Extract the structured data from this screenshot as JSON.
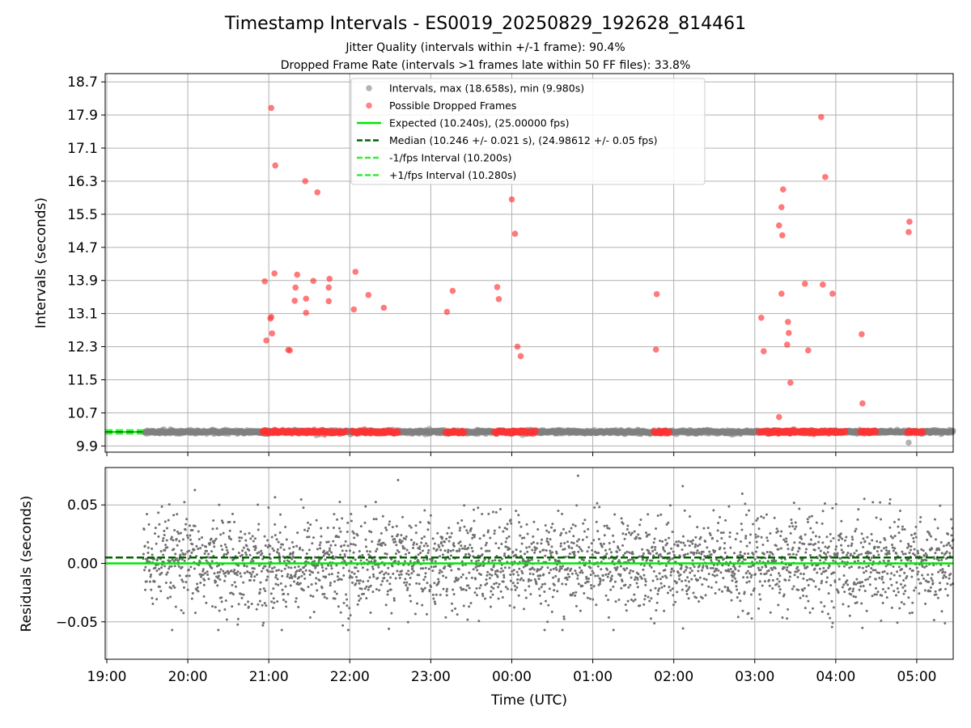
{
  "chart_data": [
    {
      "type": "scatter",
      "title": "Timestamp Intervals - ES0019_20250829_192628_814461",
      "subtitle_lines": [
        "Jitter Quality (intervals within +/-1 frame): 90.4%",
        "Dropped Frame Rate (intervals >1 frames late within 50 FF files): 33.8%"
      ],
      "ylabel": "Intervals (seconds)",
      "xlabel": "",
      "x_unit": "hours since 19:00 UTC",
      "xlim": [
        18.98,
        29.45
      ],
      "ylim": [
        9.75,
        18.9
      ],
      "yticks": [
        9.9,
        10.7,
        11.5,
        12.3,
        13.1,
        13.9,
        14.7,
        15.5,
        16.3,
        17.1,
        17.9,
        18.7
      ],
      "ytick_labels": [
        "9.9",
        "10.7",
        "11.5",
        "12.3",
        "13.1",
        "13.9",
        "14.7",
        "15.5",
        "16.3",
        "17.1",
        "17.9",
        "18.7"
      ],
      "grid": true,
      "legend_position": "upper-center",
      "legend": [
        {
          "label": "Intervals, max (18.658s), min (9.980s)",
          "kind": "marker",
          "color": "#808080"
        },
        {
          "label": "Possible Dropped Frames",
          "kind": "marker",
          "color": "#ff3333"
        },
        {
          "label": "Expected (10.240s), (25.00000 fps)",
          "kind": "solid",
          "color": "#00e600"
        },
        {
          "label": "Median (10.246 +/- 0.021 s), (24.98612 +/- 0.05 fps)",
          "kind": "dashed",
          "color": "#006400"
        },
        {
          "label": "-1/fps Interval (10.200s)",
          "kind": "dashed",
          "color": "#33ee33"
        },
        {
          "label": "+1/fps Interval (10.280s)",
          "kind": "dashed",
          "color": "#33ee33"
        }
      ],
      "series": [
        {
          "name": "Intervals, max (18.658s), min (9.980s)",
          "color": "#808080",
          "baseline": 10.24,
          "x_range": [
            19.47,
            29.45
          ],
          "outliers": [
            [
              28.9,
              9.98
            ]
          ]
        },
        {
          "name": "Possible Dropped Frames",
          "color": "#ff3333",
          "baseline_clusters": [
            [
              20.92,
              21.95
            ],
            [
              22.02,
              22.6
            ],
            [
              23.18,
              23.42
            ],
            [
              23.78,
              24.3
            ],
            [
              25.75,
              25.95
            ],
            [
              27.05,
              28.12
            ],
            [
              28.3,
              28.5
            ],
            [
              28.88,
              29.08
            ]
          ],
          "points": [
            [
              21.03,
              18.07
            ],
            [
              21.08,
              16.68
            ],
            [
              21.45,
              16.3
            ],
            [
              21.6,
              16.03
            ],
            [
              20.95,
              13.88
            ],
            [
              21.07,
              14.07
            ],
            [
              21.35,
              14.04
            ],
            [
              21.75,
              13.94
            ],
            [
              21.55,
              13.89
            ],
            [
              21.33,
              13.73
            ],
            [
              21.74,
              13.73
            ],
            [
              21.46,
              13.46
            ],
            [
              21.74,
              13.4
            ],
            [
              21.32,
              13.41
            ],
            [
              21.46,
              13.12
            ],
            [
              21.03,
              13.02
            ],
            [
              21.02,
              12.98
            ],
            [
              21.04,
              12.62
            ],
            [
              20.97,
              12.45
            ],
            [
              21.24,
              12.22
            ],
            [
              21.26,
              12.21
            ],
            [
              22.07,
              14.11
            ],
            [
              22.23,
              13.55
            ],
            [
              22.42,
              13.24
            ],
            [
              22.05,
              13.2
            ],
            [
              23.27,
              13.65
            ],
            [
              23.2,
              13.14
            ],
            [
              23.82,
              13.74
            ],
            [
              23.84,
              13.45
            ],
            [
              24.0,
              15.86
            ],
            [
              24.04,
              15.03
            ],
            [
              24.07,
              12.3
            ],
            [
              24.11,
              12.07
            ],
            [
              25.79,
              13.57
            ],
            [
              25.78,
              12.23
            ],
            [
              27.3,
              15.23
            ],
            [
              27.33,
              15.67
            ],
            [
              27.35,
              16.1
            ],
            [
              27.34,
              14.99
            ],
            [
              27.33,
              13.58
            ],
            [
              27.41,
              12.9
            ],
            [
              27.42,
              12.63
            ],
            [
              27.4,
              12.35
            ],
            [
              27.44,
              11.43
            ],
            [
              27.08,
              13.0
            ],
            [
              27.11,
              12.19
            ],
            [
              27.3,
              10.6
            ],
            [
              27.62,
              13.82
            ],
            [
              27.82,
              17.85
            ],
            [
              27.87,
              16.4
            ],
            [
              27.84,
              13.8
            ],
            [
              27.96,
              13.58
            ],
            [
              27.66,
              12.21
            ],
            [
              28.32,
              12.6
            ],
            [
              28.33,
              10.93
            ],
            [
              28.91,
              15.32
            ],
            [
              28.9,
              15.07
            ]
          ]
        }
      ],
      "reference_lines": [
        {
          "name": "Expected",
          "y": 10.24,
          "style": "solid",
          "color": "#00e600"
        },
        {
          "name": "Median",
          "y": 10.246,
          "style": "dashed",
          "color": "#006400"
        },
        {
          "name": "-1/fps Interval",
          "y": 10.2,
          "style": "dashed",
          "color": "#33ee33"
        },
        {
          "name": "+1/fps Interval",
          "y": 10.28,
          "style": "dashed",
          "color": "#33ee33"
        }
      ]
    },
    {
      "type": "scatter",
      "ylabel": "Residuals (seconds)",
      "xlabel": "Time (UTC)",
      "x_unit": "hours since 19:00 UTC",
      "xlim": [
        18.98,
        29.45
      ],
      "ylim": [
        -0.082,
        0.082
      ],
      "yticks": [
        -0.05,
        0.0,
        0.05
      ],
      "ytick_labels": [
        "−0.05",
        "0.00",
        "0.05"
      ],
      "xticks": [
        19,
        20,
        21,
        22,
        23,
        24,
        25,
        26,
        27,
        28,
        29
      ],
      "xtick_labels": [
        "19:00",
        "20:00",
        "21:00",
        "22:00",
        "23:00",
        "00:00",
        "01:00",
        "02:00",
        "03:00",
        "04:00",
        "05:00"
      ],
      "grid": true,
      "series": [
        {
          "name": "Residuals",
          "color": "#707070",
          "x_range": [
            19.45,
            29.45
          ],
          "spread": [
            -0.057,
            0.075
          ]
        }
      ],
      "reference_lines": [
        {
          "name": "Expected",
          "y": 0.0,
          "style": "solid",
          "color": "#00e600"
        },
        {
          "name": "Median",
          "y": 0.005,
          "style": "dashed",
          "color": "#006400"
        }
      ]
    }
  ]
}
